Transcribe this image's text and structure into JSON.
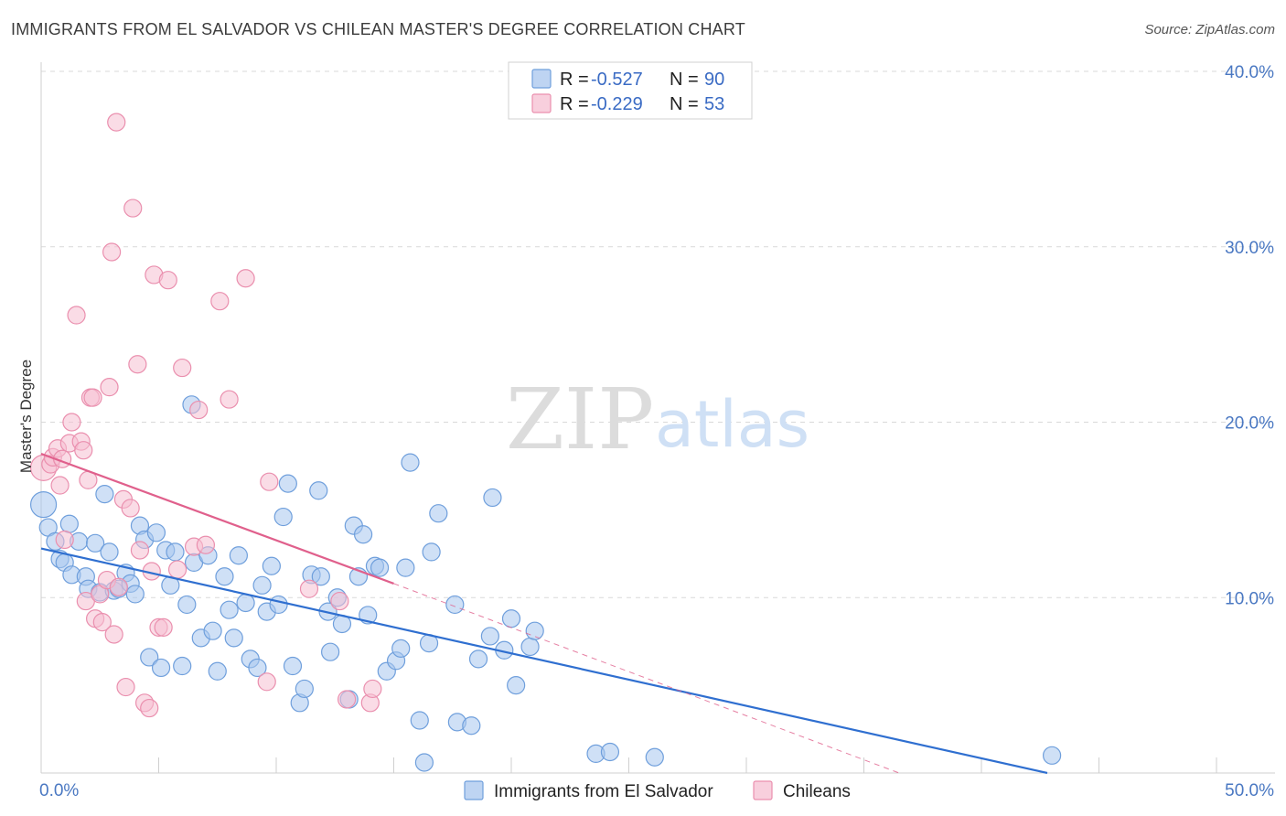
{
  "title": "IMMIGRANTS FROM EL SALVADOR VS CHILEAN MASTER'S DEGREE CORRELATION CHART",
  "source": "Source: ZipAtlas.com",
  "watermark": {
    "zip": "ZIP",
    "atlas": "atlas"
  },
  "legend": {
    "rows": [
      {
        "r_label": "R =",
        "r_value": "-0.527",
        "n_label": "N =",
        "n_value": "90"
      },
      {
        "r_label": "R =",
        "r_value": "-0.229",
        "n_label": "N =",
        "n_value": "53"
      }
    ]
  },
  "colors": {
    "blue_fill": "#a8c6ee",
    "blue_stroke": "#6f9fdc",
    "blue_line": "#2f6fd0",
    "pink_fill": "#f6bfd2",
    "pink_stroke": "#ea8fae",
    "pink_line": "#e0608c",
    "grid": "#d9d9d9",
    "tick_text": "#4a78c2"
  },
  "chart_data": {
    "type": "scatter",
    "title": "IMMIGRANTS FROM EL SALVADOR VS CHILEAN MASTER'S DEGREE CORRELATION CHART",
    "xlabel": "",
    "ylabel": "Master's Degree",
    "xlim": [
      0,
      50
    ],
    "ylim": [
      0,
      40
    ],
    "x_ticks": [
      {
        "value": 0,
        "label": "0.0%"
      },
      {
        "value": 50,
        "label": "50.0%"
      }
    ],
    "y_ticks": [
      {
        "value": 10,
        "label": "10.0%"
      },
      {
        "value": 20,
        "label": "20.0%"
      },
      {
        "value": 30,
        "label": "30.0%"
      },
      {
        "value": 40,
        "label": "40.0%"
      }
    ],
    "grid": true,
    "legend_position": "top-center",
    "series": [
      {
        "name": "Immigrants from El Salvador",
        "color": "#a8c6ee",
        "r": -0.527,
        "n": 90,
        "trend": {
          "x": [
            0,
            42.8
          ],
          "y": [
            12.8,
            0.0
          ]
        },
        "points": [
          [
            0.1,
            15.3
          ],
          [
            0.3,
            14.0
          ],
          [
            0.6,
            13.2
          ],
          [
            0.8,
            12.2
          ],
          [
            1.0,
            12.0
          ],
          [
            1.2,
            14.2
          ],
          [
            1.3,
            11.3
          ],
          [
            1.6,
            13.2
          ],
          [
            1.9,
            11.2
          ],
          [
            2.0,
            10.5
          ],
          [
            2.3,
            13.1
          ],
          [
            2.5,
            10.3
          ],
          [
            2.7,
            15.9
          ],
          [
            2.9,
            12.6
          ],
          [
            3.1,
            10.4
          ],
          [
            3.3,
            10.5
          ],
          [
            3.6,
            11.4
          ],
          [
            3.8,
            10.8
          ],
          [
            4.0,
            10.2
          ],
          [
            4.2,
            14.1
          ],
          [
            4.4,
            13.3
          ],
          [
            4.6,
            6.6
          ],
          [
            4.9,
            13.7
          ],
          [
            5.1,
            6.0
          ],
          [
            5.3,
            12.7
          ],
          [
            5.5,
            10.7
          ],
          [
            5.7,
            12.6
          ],
          [
            6.0,
            6.1
          ],
          [
            6.2,
            9.6
          ],
          [
            6.4,
            21.0
          ],
          [
            6.5,
            12.0
          ],
          [
            6.8,
            7.7
          ],
          [
            7.1,
            12.4
          ],
          [
            7.3,
            8.1
          ],
          [
            7.5,
            5.8
          ],
          [
            7.8,
            11.2
          ],
          [
            8.0,
            9.3
          ],
          [
            8.2,
            7.7
          ],
          [
            8.4,
            12.4
          ],
          [
            8.7,
            9.7
          ],
          [
            8.9,
            6.5
          ],
          [
            9.2,
            6.0
          ],
          [
            9.4,
            10.7
          ],
          [
            9.6,
            9.2
          ],
          [
            9.8,
            11.8
          ],
          [
            10.1,
            9.6
          ],
          [
            10.3,
            14.6
          ],
          [
            10.5,
            16.5
          ],
          [
            10.7,
            6.1
          ],
          [
            11.0,
            4.0
          ],
          [
            11.2,
            4.8
          ],
          [
            11.5,
            11.3
          ],
          [
            11.8,
            16.1
          ],
          [
            11.9,
            11.2
          ],
          [
            12.2,
            9.2
          ],
          [
            12.3,
            6.9
          ],
          [
            12.6,
            10.0
          ],
          [
            12.8,
            8.5
          ],
          [
            13.1,
            4.2
          ],
          [
            13.3,
            14.1
          ],
          [
            13.5,
            11.2
          ],
          [
            13.7,
            13.6
          ],
          [
            13.9,
            9.0
          ],
          [
            14.2,
            11.8
          ],
          [
            14.4,
            11.7
          ],
          [
            14.7,
            5.8
          ],
          [
            15.1,
            6.4
          ],
          [
            15.3,
            7.1
          ],
          [
            15.5,
            11.7
          ],
          [
            15.7,
            17.7
          ],
          [
            16.1,
            3.0
          ],
          [
            16.3,
            0.6
          ],
          [
            16.5,
            7.4
          ],
          [
            16.6,
            12.6
          ],
          [
            16.9,
            14.8
          ],
          [
            17.6,
            9.6
          ],
          [
            17.7,
            2.9
          ],
          [
            18.3,
            2.7
          ],
          [
            18.6,
            6.5
          ],
          [
            19.1,
            7.8
          ],
          [
            19.2,
            15.7
          ],
          [
            19.7,
            7.0
          ],
          [
            20.0,
            8.8
          ],
          [
            20.2,
            5.0
          ],
          [
            20.8,
            7.2
          ],
          [
            21.0,
            8.1
          ],
          [
            23.6,
            1.1
          ],
          [
            24.2,
            1.2
          ],
          [
            26.1,
            0.9
          ],
          [
            43.0,
            1.0
          ]
        ]
      },
      {
        "name": "Chileans",
        "color": "#f6bfd2",
        "r": -0.229,
        "n": 53,
        "trend": {
          "x": [
            0,
            15
          ],
          "y": [
            18.2,
            10.8
          ]
        },
        "trend_dashed": {
          "x": [
            15,
            36.5
          ],
          "y": [
            10.8,
            0.0
          ]
        },
        "points": [
          [
            0.1,
            17.4
          ],
          [
            0.4,
            17.6
          ],
          [
            0.5,
            18.0
          ],
          [
            0.7,
            18.5
          ],
          [
            0.8,
            16.4
          ],
          [
            0.9,
            17.9
          ],
          [
            1.0,
            13.3
          ],
          [
            1.2,
            18.8
          ],
          [
            1.3,
            20.0
          ],
          [
            1.5,
            26.1
          ],
          [
            1.7,
            18.9
          ],
          [
            1.8,
            18.4
          ],
          [
            1.9,
            9.8
          ],
          [
            2.0,
            16.7
          ],
          [
            2.1,
            21.4
          ],
          [
            2.2,
            21.4
          ],
          [
            2.3,
            8.8
          ],
          [
            2.5,
            10.2
          ],
          [
            2.6,
            8.6
          ],
          [
            2.8,
            11.0
          ],
          [
            2.9,
            22.0
          ],
          [
            3.0,
            29.7
          ],
          [
            3.1,
            7.9
          ],
          [
            3.2,
            37.1
          ],
          [
            3.3,
            10.6
          ],
          [
            3.5,
            15.6
          ],
          [
            3.6,
            4.9
          ],
          [
            3.8,
            15.1
          ],
          [
            3.9,
            32.2
          ],
          [
            4.1,
            23.3
          ],
          [
            4.2,
            12.7
          ],
          [
            4.4,
            4.0
          ],
          [
            4.6,
            3.7
          ],
          [
            4.7,
            11.5
          ],
          [
            4.8,
            28.4
          ],
          [
            5.0,
            8.3
          ],
          [
            5.2,
            8.3
          ],
          [
            5.4,
            28.1
          ],
          [
            5.8,
            11.6
          ],
          [
            6.0,
            23.1
          ],
          [
            6.5,
            12.9
          ],
          [
            6.7,
            20.7
          ],
          [
            7.0,
            13.0
          ],
          [
            7.6,
            26.9
          ],
          [
            8.0,
            21.3
          ],
          [
            8.7,
            28.2
          ],
          [
            9.6,
            5.2
          ],
          [
            9.7,
            16.6
          ],
          [
            11.4,
            10.5
          ],
          [
            12.7,
            9.8
          ],
          [
            13.0,
            4.2
          ],
          [
            14.0,
            4.0
          ],
          [
            14.1,
            4.8
          ]
        ]
      }
    ]
  }
}
